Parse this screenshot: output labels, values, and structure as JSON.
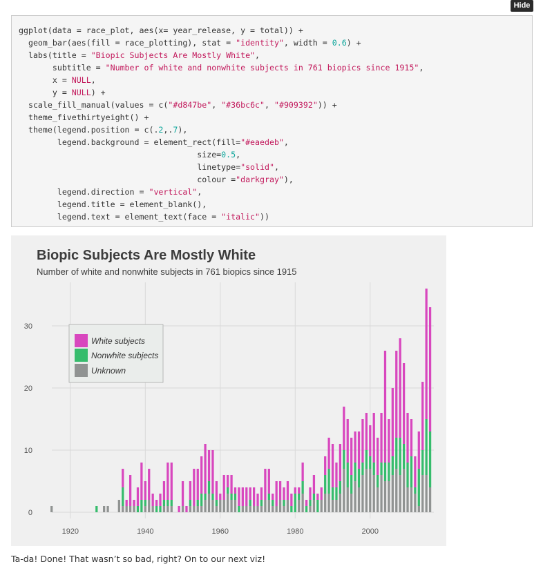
{
  "hide_button": "Hide",
  "code_lines": [
    [
      [
        "t",
        "ggplot(data = race_plot, aes(x= year_release, y = total)) +"
      ]
    ],
    [
      [
        "t",
        "  geom_bar(aes(fill = race_plotting), stat = "
      ],
      [
        "s",
        "\"identity\""
      ],
      [
        "t",
        ", width = "
      ],
      [
        "n",
        "0.6"
      ],
      [
        "t",
        ") +"
      ]
    ],
    [
      [
        "t",
        "  labs(title = "
      ],
      [
        "s",
        "\"Biopic Subjects Are Mostly White\""
      ],
      [
        "t",
        ","
      ]
    ],
    [
      [
        "t",
        "       subtitle = "
      ],
      [
        "s",
        "\"Number of white and nonwhite subjects in 761 biopics since 1915\""
      ],
      [
        "t",
        ","
      ]
    ],
    [
      [
        "t",
        "       x = "
      ],
      [
        "k",
        "NULL"
      ],
      [
        "t",
        ","
      ]
    ],
    [
      [
        "t",
        "       y = "
      ],
      [
        "k",
        "NULL"
      ],
      [
        "t",
        ") +"
      ]
    ],
    [
      [
        "t",
        "  scale_fill_manual(values = c("
      ],
      [
        "s",
        "\"#d847be\""
      ],
      [
        "t",
        ", "
      ],
      [
        "s",
        "\"#36bc6c\""
      ],
      [
        "t",
        ", "
      ],
      [
        "s",
        "\"#909392\""
      ],
      [
        "t",
        ")) +"
      ]
    ],
    [
      [
        "t",
        "  theme_fivethirtyeight() +"
      ]
    ],
    [
      [
        "t",
        "  theme(legend.position = c(."
      ],
      [
        "n",
        "2"
      ],
      [
        "t",
        ",."
      ],
      [
        "n",
        "7"
      ],
      [
        "t",
        "),"
      ]
    ],
    [
      [
        "t",
        "        legend.background = element_rect(fill="
      ],
      [
        "s",
        "\"#eaedeb\""
      ],
      [
        "t",
        ","
      ]
    ],
    [
      [
        "t",
        "                                     size="
      ],
      [
        "n",
        "0.5"
      ],
      [
        "t",
        ","
      ]
    ],
    [
      [
        "t",
        "                                     linetype="
      ],
      [
        "s",
        "\"solid\""
      ],
      [
        "t",
        ","
      ]
    ],
    [
      [
        "t",
        "                                     colour ="
      ],
      [
        "s",
        "\"darkgray\""
      ],
      [
        "t",
        "),"
      ]
    ],
    [
      [
        "t",
        "        legend.direction = "
      ],
      [
        "s",
        "\"vertical\""
      ],
      [
        "t",
        ","
      ]
    ],
    [
      [
        "t",
        "        legend.title = element_blank(),"
      ]
    ],
    [
      [
        "t",
        "        legend.text = element_text(face = "
      ],
      [
        "s",
        "\"italic\""
      ],
      [
        "t",
        "))"
      ]
    ]
  ],
  "caption": "Ta-da! Done! That wasn’t so bad, right? On to our next viz!",
  "colors": {
    "white": "#d847be",
    "nonwhite": "#36bc6c",
    "unknown": "#909392",
    "panel": "#f0f0f0",
    "grid": "#d9d9d9"
  },
  "chart_data": {
    "type": "bar",
    "stacked": true,
    "title": "Biopic Subjects Are Mostly White",
    "subtitle": "Number of white and nonwhite subjects in 761 biopics since 1915",
    "xlabel": "",
    "ylabel": "",
    "xlim": [
      1911,
      2017
    ],
    "ylim": [
      -1,
      37
    ],
    "xticks": [
      1920,
      1940,
      1960,
      1980,
      2000
    ],
    "yticks": [
      0,
      10,
      20,
      30
    ],
    "grid": true,
    "legend_position": "upper-left",
    "series": [
      {
        "name": "White subjects",
        "color": "#d847be"
      },
      {
        "name": "Nonwhite subjects",
        "color": "#36bc6c"
      },
      {
        "name": "Unknown",
        "color": "#909392"
      }
    ],
    "bars": [
      [
        1915,
        0,
        0,
        1
      ],
      [
        1927,
        0,
        1,
        0
      ],
      [
        1929,
        0,
        0,
        1
      ],
      [
        1930,
        0,
        0,
        1
      ],
      [
        1933,
        0,
        0,
        2
      ],
      [
        1934,
        3,
        3,
        1
      ],
      [
        1935,
        1,
        0,
        1
      ],
      [
        1936,
        5,
        0,
        1
      ],
      [
        1937,
        1,
        0,
        1
      ],
      [
        1938,
        3,
        1,
        0
      ],
      [
        1939,
        6,
        2,
        0
      ],
      [
        1940,
        3,
        1,
        1
      ],
      [
        1941,
        5,
        0,
        2
      ],
      [
        1942,
        2,
        0,
        1
      ],
      [
        1943,
        1,
        1,
        0
      ],
      [
        1944,
        2,
        1,
        0
      ],
      [
        1945,
        3,
        1,
        1
      ],
      [
        1946,
        6,
        1,
        1
      ],
      [
        1947,
        6,
        1,
        1
      ],
      [
        1949,
        1,
        0,
        0
      ],
      [
        1950,
        4,
        0,
        1
      ],
      [
        1951,
        1,
        0,
        0
      ],
      [
        1952,
        3,
        1,
        1
      ],
      [
        1953,
        6,
        0,
        1
      ],
      [
        1954,
        5,
        1,
        1
      ],
      [
        1955,
        6,
        2,
        1
      ],
      [
        1956,
        8,
        1,
        2
      ],
      [
        1957,
        5,
        2,
        3
      ],
      [
        1958,
        7,
        1,
        2
      ],
      [
        1959,
        3,
        1,
        1
      ],
      [
        1960,
        1,
        0,
        2
      ],
      [
        1961,
        4,
        0,
        2
      ],
      [
        1962,
        2,
        1,
        3
      ],
      [
        1963,
        3,
        1,
        2
      ],
      [
        1964,
        1,
        1,
        2
      ],
      [
        1965,
        3,
        1,
        0
      ],
      [
        1966,
        3,
        0,
        1
      ],
      [
        1967,
        3,
        0,
        1
      ],
      [
        1968,
        2,
        1,
        1
      ],
      [
        1969,
        3,
        0,
        1
      ],
      [
        1970,
        2,
        0,
        1
      ],
      [
        1971,
        2,
        1,
        1
      ],
      [
        1972,
        5,
        0,
        2
      ],
      [
        1973,
        4,
        1,
        2
      ],
      [
        1974,
        1,
        1,
        1
      ],
      [
        1975,
        4,
        0,
        1
      ],
      [
        1976,
        3,
        0,
        2
      ],
      [
        1977,
        2,
        1,
        1
      ],
      [
        1978,
        3,
        0,
        2
      ],
      [
        1979,
        2,
        1,
        0
      ],
      [
        1980,
        1,
        3,
        0
      ],
      [
        1981,
        1,
        1,
        2
      ],
      [
        1982,
        3,
        2,
        3
      ],
      [
        1983,
        1,
        1,
        0
      ],
      [
        1984,
        2,
        1,
        1
      ],
      [
        1985,
        3,
        1,
        2
      ],
      [
        1986,
        1,
        2,
        0
      ],
      [
        1987,
        2,
        0,
        2
      ],
      [
        1988,
        3,
        3,
        3
      ],
      [
        1989,
        5,
        4,
        3
      ],
      [
        1990,
        7,
        2,
        2
      ],
      [
        1991,
        4,
        2,
        2
      ],
      [
        1992,
        6,
        2,
        3
      ],
      [
        1993,
        7,
        3,
        7
      ],
      [
        1994,
        7,
        4,
        4
      ],
      [
        1995,
        6,
        3,
        3
      ],
      [
        1996,
        5,
        3,
        5
      ],
      [
        1997,
        6,
        3,
        4
      ],
      [
        1998,
        7,
        2,
        6
      ],
      [
        1999,
        6,
        3,
        7
      ],
      [
        2000,
        5,
        2,
        7
      ],
      [
        2001,
        8,
        2,
        6
      ],
      [
        2002,
        6,
        2,
        4
      ],
      [
        2003,
        8,
        2,
        6
      ],
      [
        2004,
        18,
        3,
        5
      ],
      [
        2005,
        7,
        3,
        5
      ],
      [
        2006,
        11,
        3,
        6
      ],
      [
        2007,
        14,
        5,
        7
      ],
      [
        2008,
        16,
        6,
        6
      ],
      [
        2009,
        13,
        4,
        7
      ],
      [
        2010,
        8,
        4,
        4
      ],
      [
        2011,
        6,
        5,
        4
      ],
      [
        2012,
        5,
        1,
        3
      ],
      [
        2013,
        6,
        6,
        1
      ],
      [
        2014,
        11,
        4,
        6
      ],
      [
        2015,
        21,
        9,
        6
      ],
      [
        2016,
        20,
        9,
        4
      ]
    ]
  }
}
